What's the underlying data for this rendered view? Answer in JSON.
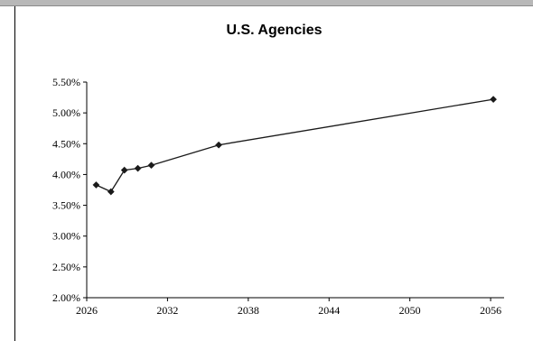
{
  "chart_data": {
    "type": "line",
    "title": "U.S. Agencies",
    "xlabel": "",
    "ylabel": "",
    "xlim": [
      2026,
      2057
    ],
    "ylim": [
      2.0,
      5.5
    ],
    "x_ticks": [
      2026,
      2032,
      2038,
      2044,
      2050,
      2056
    ],
    "x_tick_labels": [
      "2026",
      "2032",
      "2038",
      "2044",
      "2050",
      "2056"
    ],
    "y_ticks": [
      2.0,
      2.5,
      3.0,
      3.5,
      4.0,
      4.5,
      5.0,
      5.5
    ],
    "y_tick_labels": [
      "2.00%",
      "2.50%",
      "3.00%",
      "3.50%",
      "4.00%",
      "4.50%",
      "5.00%",
      "5.50%"
    ],
    "grid": false,
    "legend": "none",
    "series": [
      {
        "x": [
          2026.7,
          2027.8,
          2028.8,
          2029.8,
          2030.8,
          2035.8,
          2056.2
        ],
        "values": [
          3.83,
          3.72,
          4.07,
          4.1,
          4.15,
          4.48,
          5.22
        ],
        "marker": "diamond",
        "color": "#1a1a1a"
      }
    ]
  }
}
